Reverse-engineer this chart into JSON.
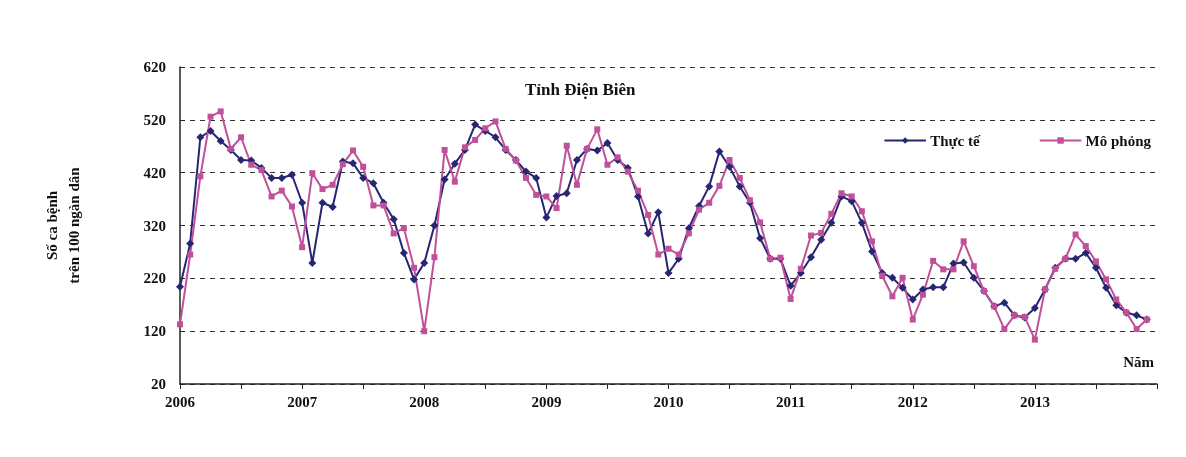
{
  "chart_data": {
    "type": "line",
    "title": "Tỉnh Điện Biên",
    "ylabel": "Số ca bệnh\ntrên 100 ngàn dân",
    "annotations": [
      "Năm"
    ],
    "x": [
      "2006-01",
      "2006-02",
      "2006-03",
      "2006-04",
      "2006-05",
      "2006-06",
      "2006-07",
      "2006-08",
      "2006-09",
      "2006-10",
      "2006-11",
      "2006-12",
      "2007-01",
      "2007-02",
      "2007-03",
      "2007-04",
      "2007-05",
      "2007-06",
      "2007-07",
      "2007-08",
      "2007-09",
      "2007-10",
      "2007-11",
      "2007-12",
      "2008-01",
      "2008-02",
      "2008-03",
      "2008-04",
      "2008-05",
      "2008-06",
      "2008-07",
      "2008-08",
      "2008-09",
      "2008-10",
      "2008-11",
      "2008-12",
      "2009-01",
      "2009-02",
      "2009-03",
      "2009-04",
      "2009-05",
      "2009-06",
      "2009-07",
      "2009-08",
      "2009-09",
      "2009-10",
      "2009-11",
      "2009-12",
      "2010-01",
      "2010-02",
      "2010-03",
      "2010-04",
      "2010-05",
      "2010-06",
      "2010-07",
      "2010-08",
      "2010-09",
      "2010-10",
      "2010-11",
      "2010-12",
      "2011-01",
      "2011-02",
      "2011-03",
      "2011-04",
      "2011-05",
      "2011-06",
      "2011-07",
      "2011-08",
      "2011-09",
      "2011-10",
      "2011-11",
      "2011-12",
      "2012-01",
      "2012-02",
      "2012-03",
      "2012-04",
      "2012-05",
      "2012-06",
      "2012-07",
      "2012-08",
      "2012-09",
      "2012-10",
      "2012-11",
      "2012-12",
      "2013-01",
      "2013-02",
      "2013-03",
      "2013-04",
      "2013-05",
      "2013-06",
      "2013-07",
      "2013-08",
      "2013-09",
      "2013-10",
      "2013-11",
      "2013-12"
    ],
    "series": [
      {
        "name": "Thực tế",
        "color": "#262673",
        "marker": "diamond",
        "values": [
          204,
          286,
          487,
          499,
          480,
          463,
          444,
          443,
          429,
          410,
          410,
          416,
          363,
          249,
          363,
          355,
          441,
          438,
          410,
          400,
          363,
          332,
          268,
          218,
          249,
          320,
          407,
          437,
          463,
          511,
          499,
          487,
          463,
          444,
          422,
          410,
          335,
          376,
          381,
          444,
          465,
          462,
          476,
          444,
          429,
          375,
          305,
          345,
          230,
          257,
          315,
          357,
          394,
          460,
          431,
          394,
          363,
          296,
          257,
          257,
          206,
          230,
          260,
          293,
          325,
          375,
          366,
          325,
          271,
          230,
          221,
          202,
          180,
          199,
          203,
          203,
          248,
          250,
          221,
          196,
          167,
          174,
          150,
          146,
          164,
          199,
          240,
          257,
          257,
          268,
          240,
          202,
          169,
          155,
          150,
          142
        ]
      },
      {
        "name": "Mô phỏng",
        "color": "#c0509a",
        "marker": "square",
        "values": [
          133,
          265,
          413,
          526,
          536,
          465,
          487,
          435,
          425,
          375,
          386,
          356,
          279,
          419,
          389,
          397,
          436,
          462,
          431,
          358,
          358,
          305,
          315,
          240,
          120,
          260,
          463,
          403,
          468,
          482,
          504,
          517,
          465,
          443,
          410,
          378,
          375,
          353,
          471,
          397,
          465,
          502,
          435,
          449,
          422,
          386,
          340,
          265,
          276,
          265,
          305,
          350,
          363,
          395,
          444,
          410,
          368,
          326,
          257,
          259,
          181,
          238,
          301,
          306,
          342,
          381,
          375,
          347,
          290,
          225,
          186,
          221,
          142,
          189,
          253,
          237,
          237,
          290,
          243,
          196,
          167,
          124,
          150,
          147,
          104,
          199,
          238,
          257,
          303,
          281,
          252,
          218,
          180,
          155,
          124,
          142
        ]
      }
    ],
    "xlim": [
      "2006-01",
      "2014-01"
    ],
    "xticks": [
      {
        "value": "2006-01",
        "label": "2006"
      },
      {
        "value": "2006-07",
        "label": null
      },
      {
        "value": "2007-01",
        "label": "2007"
      },
      {
        "value": "2007-07",
        "label": null
      },
      {
        "value": "2008-01",
        "label": "2008"
      },
      {
        "value": "2008-07",
        "label": null
      },
      {
        "value": "2009-01",
        "label": "2009"
      },
      {
        "value": "2009-07",
        "label": null
      },
      {
        "value": "2010-01",
        "label": "2010"
      },
      {
        "value": "2010-07",
        "label": null
      },
      {
        "value": "2011-01",
        "label": "2011"
      },
      {
        "value": "2011-07",
        "label": null
      },
      {
        "value": "2012-01",
        "label": "2012"
      },
      {
        "value": "2012-07",
        "label": null
      },
      {
        "value": "2013-01",
        "label": "2013"
      },
      {
        "value": "2013-07",
        "label": null
      },
      {
        "value": "2014-01",
        "label": null
      }
    ],
    "ylim": [
      20,
      620
    ],
    "yticks": [
      20,
      120,
      220,
      320,
      420,
      520,
      620
    ],
    "grid": "y",
    "legend": "top right",
    "line_style": "solid"
  }
}
